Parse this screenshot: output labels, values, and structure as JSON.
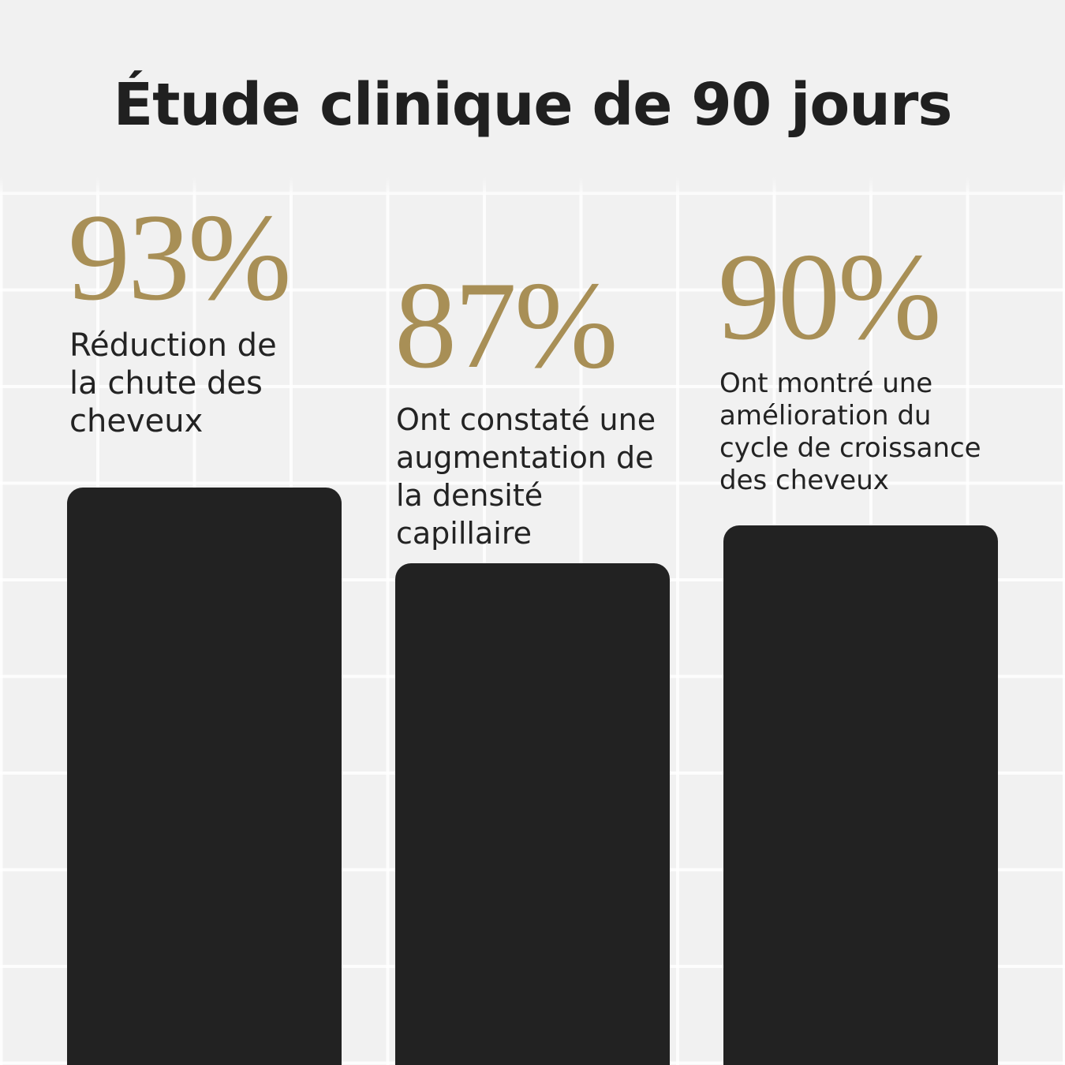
{
  "title": "Étude clinique de 90 jours",
  "chart_data": {
    "type": "bar",
    "title": "Étude clinique de 90 jours",
    "categories": [
      "Réduction de la chute des cheveux",
      "Ont constaté une augmentation de la densité capillaire",
      "Ont montré une amélioration du cycle de croissance des cheveux"
    ],
    "values": [
      93,
      87,
      90
    ],
    "value_labels": [
      "93%",
      "87%",
      "90%"
    ],
    "ylim": [
      0,
      100
    ],
    "grid": false,
    "colors": {
      "bar": "#222222",
      "value_label": "#a88f56",
      "background": "#f1f1f1"
    }
  },
  "columns": [
    {
      "percent": "93%",
      "lines": [
        "Réduction de",
        "la chute des",
        "cheveux"
      ]
    },
    {
      "percent": "87%",
      "lines": [
        "Ont constaté une",
        "augmentation de",
        "la densité",
        "capillaire"
      ]
    },
    {
      "percent": "90%",
      "lines": [
        "Ont montré une",
        "amélioration du",
        "cycle de croissance",
        "des cheveux"
      ]
    }
  ]
}
